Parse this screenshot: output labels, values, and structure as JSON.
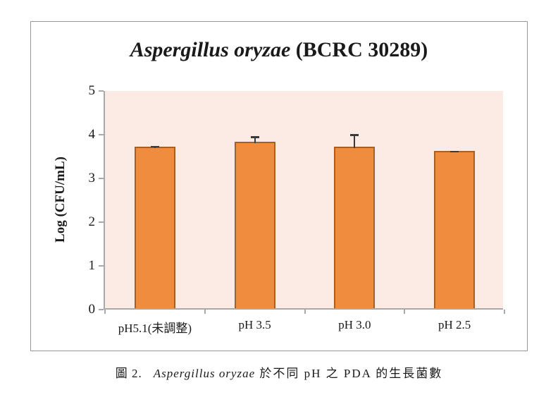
{
  "figure": {
    "caption": {
      "label": "圖 2.",
      "species_italic": "Aspergillus oryzae",
      "rest": "於不同 pH 之 PDA 的生長菌數"
    }
  },
  "chart_data": {
    "type": "bar",
    "title": "Aspergillus oryzae (BCRC 30289)",
    "title_italic": "Aspergillus oryzae",
    "title_rest": " (BCRC 30289)",
    "categories": [
      "pH5.1(未調整)",
      "pH 3.5",
      "pH 3.0",
      "pH 2.5"
    ],
    "values": [
      3.7,
      3.8,
      3.7,
      3.6
    ],
    "error_upper": [
      0.03,
      0.15,
      0.3,
      0.02
    ],
    "xlabel": "",
    "ylabel": "Log (CFU/mL)",
    "ylim": [
      0,
      5
    ],
    "yticks": [
      0,
      1,
      2,
      3,
      4,
      5
    ],
    "grid": false,
    "legend": "none",
    "colors": {
      "bar_fill": "#EF8C3E",
      "bar_border": "#AA5F22",
      "plot_bg": "#FCEBE5",
      "axis": "#A9A9A9",
      "error_bar": "#3A3A3A",
      "frame_border": "#979797"
    }
  }
}
